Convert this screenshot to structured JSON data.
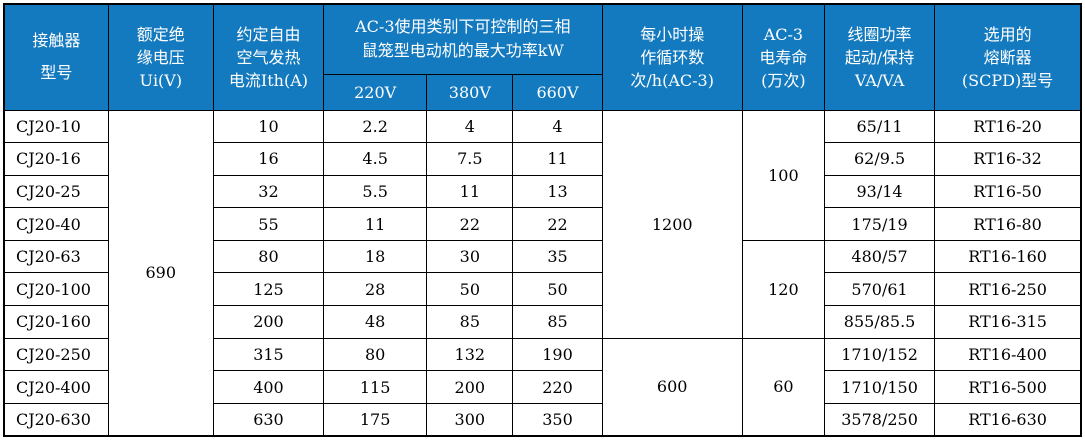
{
  "colors": {
    "header_bg": "#147abf",
    "header_text": "#ffffff",
    "border": "#000000",
    "body_bg": "#ffffff",
    "body_text": "#000000"
  },
  "header": {
    "contactor": {
      "lines": [
        "接触器",
        "型号"
      ]
    },
    "insulation": {
      "lines": [
        "额定绝",
        "缘电压",
        "Ui(V)"
      ]
    },
    "thermal": {
      "lines": [
        "约定自由",
        "空气发热",
        "电流Ith(A)"
      ]
    },
    "ac3_group": {
      "lines": [
        "AC-3使用类别下可控制的三相",
        "鼠笼型电动机的最大功率kW"
      ]
    },
    "v220": "220V",
    "v380": "380V",
    "v660": "660V",
    "cycles": {
      "lines": [
        "每小时操",
        "作循环数",
        "次/h(AC-3)"
      ]
    },
    "life": {
      "lines": [
        "AC-3",
        "电寿命",
        "(万次)"
      ]
    },
    "coil": {
      "lines": [
        "线圈功率",
        "起动/保持",
        "VA/VA"
      ]
    },
    "fuse": {
      "lines": [
        "选用的",
        "熔断器",
        "(SCPD)型号"
      ]
    }
  },
  "rows": [
    {
      "model": "CJ20-10",
      "ith": "10",
      "p220": "2.2",
      "p380": "4",
      "p660": "4",
      "coil": "65/11",
      "fuse": "RT16-20"
    },
    {
      "model": "CJ20-16",
      "ith": "16",
      "p220": "4.5",
      "p380": "7.5",
      "p660": "11",
      "coil": "62/9.5",
      "fuse": "RT16-32"
    },
    {
      "model": "CJ20-25",
      "ith": "32",
      "p220": "5.5",
      "p380": "11",
      "p660": "13",
      "coil": "93/14",
      "fuse": "RT16-50"
    },
    {
      "model": "CJ20-40",
      "ith": "55",
      "p220": "11",
      "p380": "22",
      "p660": "22",
      "coil": "175/19",
      "fuse": "RT16-80"
    },
    {
      "model": "CJ20-63",
      "ith": "80",
      "p220": "18",
      "p380": "30",
      "p660": "35",
      "coil": "480/57",
      "fuse": "RT16-160"
    },
    {
      "model": "CJ20-100",
      "ith": "125",
      "p220": "28",
      "p380": "50",
      "p660": "50",
      "coil": "570/61",
      "fuse": "RT16-250"
    },
    {
      "model": "CJ20-160",
      "ith": "200",
      "p220": "48",
      "p380": "85",
      "p660": "85",
      "coil": "855/85.5",
      "fuse": "RT16-315"
    },
    {
      "model": "CJ20-250",
      "ith": "315",
      "p220": "80",
      "p380": "132",
      "p660": "190",
      "coil": "1710/152",
      "fuse": "RT16-400"
    },
    {
      "model": "CJ20-400",
      "ith": "400",
      "p220": "115",
      "p380": "200",
      "p660": "220",
      "coil": "1710/150",
      "fuse": "RT16-500"
    },
    {
      "model": "CJ20-630",
      "ith": "630",
      "p220": "175",
      "p380": "300",
      "p660": "350",
      "coil": "3578/250",
      "fuse": "RT16-630"
    }
  ],
  "merged": {
    "insulation": [
      {
        "value": "690",
        "start": 0,
        "span": 10
      }
    ],
    "cycles": [
      {
        "value": "1200",
        "start": 0,
        "span": 7
      },
      {
        "value": "600",
        "start": 7,
        "span": 3
      }
    ],
    "life": [
      {
        "value": "100",
        "start": 0,
        "span": 4
      },
      {
        "value": "120",
        "start": 4,
        "span": 3
      },
      {
        "value": "60",
        "start": 7,
        "span": 3
      }
    ]
  }
}
